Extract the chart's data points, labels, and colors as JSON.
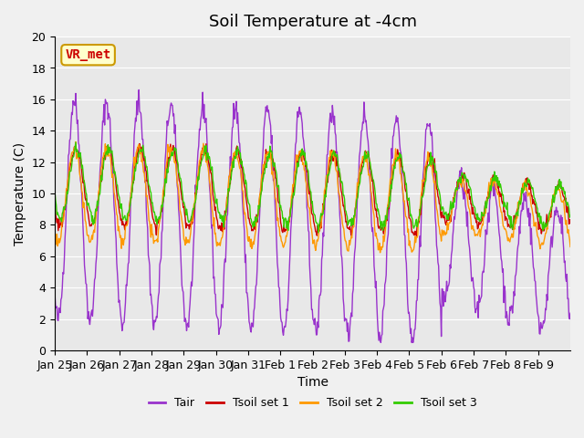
{
  "title": "Soil Temperature at -4cm",
  "xlabel": "Time",
  "ylabel": "Temperature (C)",
  "ylim": [
    0,
    20
  ],
  "bg_color": "#e8e8e8",
  "fig_color": "#f0f0f0",
  "line_colors": {
    "Tair": "#9933cc",
    "Tsoil1": "#cc0000",
    "Tsoil2": "#ff9900",
    "Tsoil3": "#33cc00"
  },
  "legend_labels": [
    "Tair",
    "Tsoil set 1",
    "Tsoil set 2",
    "Tsoil set 3"
  ],
  "xtick_labels": [
    "Jan 25",
    "Jan 26",
    "Jan 27",
    "Jan 28",
    "Jan 29",
    "Jan 30",
    "Jan 31",
    "Feb 1",
    "Feb 2",
    "Feb 3",
    "Feb 4",
    "Feb 5",
    "Feb 6",
    "Feb 7",
    "Feb 8",
    "Feb 9"
  ],
  "ytick_vals": [
    0,
    2,
    4,
    6,
    8,
    10,
    12,
    14,
    16,
    18,
    20
  ],
  "annotation_text": "VR_met",
  "annotation_color": "#cc0000",
  "annotation_bg": "#ffffcc",
  "annotation_edge": "#cc9900",
  "title_fontsize": 13,
  "axis_fontsize": 10,
  "tick_fontsize": 9,
  "legend_fontsize": 9
}
